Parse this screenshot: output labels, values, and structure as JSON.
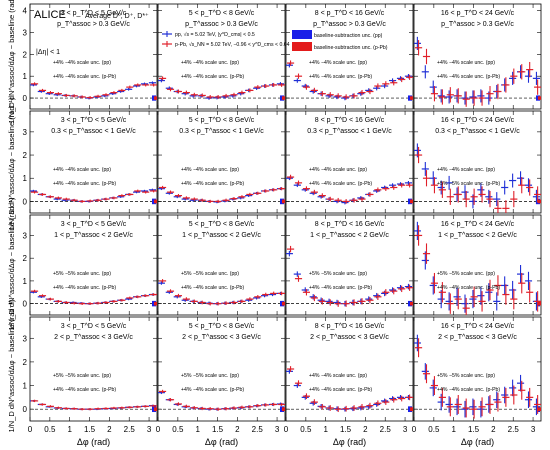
{
  "figure": {
    "experiment": "ALICE",
    "species": "Average D⁰, D⁺, D*⁺",
    "eta_cut": "|Δη| < 1",
    "ylabel": "1/N_D dN^assoc/dΔφ − baseline (rad⁻¹)",
    "xlabel": "Δφ (rad)",
    "x_ticks": [
      "0",
      "0.5",
      "1",
      "1.5",
      "2",
      "2.5",
      "3"
    ],
    "y_ticks_row1": [
      "0",
      "1",
      "2",
      "3",
      "4"
    ],
    "y_ticks": [
      "0",
      "1",
      "2",
      "3"
    ],
    "legend": {
      "pp": "pp, √s = 5.02 TeV, |y^D_cms| < 0.5",
      "ppb": "p-Pb, √s_NN = 5.02 TeV, −0.96 < y^D_cms < 0.04",
      "box_pp": "baseline-subtraction unc. (pp)",
      "box_ppb": "baseline-subtraction unc. (p-Pb)"
    },
    "colors": {
      "pp": "#1f2fd6",
      "ppb": "#e0202a",
      "box_pp": "#1a1fe8",
      "box_ppb": "#e31b1b"
    }
  },
  "panels": [
    {
      "pt_d": "3 < p_T^D < 5 GeV/c",
      "pt_assoc": "p_T^assoc > 0.3 GeV/c",
      "scale_pp": "+4% −4% scale unc. (pp)",
      "scale_ppb": "+4% −4% scale unc. (p-Pb)"
    },
    {
      "pt_d": "5 < p_T^D < 8 GeV/c",
      "pt_assoc": "p_T^assoc > 0.3 GeV/c",
      "scale_pp": "+4% −4% scale unc. (pp)",
      "scale_ppb": "+4% −4% scale unc. (p-Pb)"
    },
    {
      "pt_d": "8 < p_T^D < 16 GeV/c",
      "pt_assoc": "p_T^assoc > 0.3 GeV/c",
      "scale_pp": "+4% −4% scale unc. (pp)",
      "scale_ppb": "+4% −4% scale unc. (p-Pb)"
    },
    {
      "pt_d": "16 < p_T^D < 24 GeV/c",
      "pt_assoc": "p_T^assoc > 0.3 GeV/c",
      "scale_pp": "+4% −4% scale unc. (pp)",
      "scale_ppb": "+4% −4% scale unc. (p-Pb)"
    },
    {
      "pt_d": "3 < p_T^D < 5 GeV/c",
      "pt_assoc": "0.3 < p_T^assoc < 1 GeV/c",
      "scale_pp": "+4% −4% scale unc. (pp)",
      "scale_ppb": "+4% −4% scale unc. (p-Pb)"
    },
    {
      "pt_d": "5 < p_T^D < 8 GeV/c",
      "pt_assoc": "0.3 < p_T^assoc < 1 GeV/c",
      "scale_pp": "+4% −4% scale unc. (pp)",
      "scale_ppb": "+4% −4% scale unc. (p-Pb)"
    },
    {
      "pt_d": "8 < p_T^D < 16 GeV/c",
      "pt_assoc": "0.3 < p_T^assoc < 1 GeV/c",
      "scale_pp": "+4% −4% scale unc. (pp)",
      "scale_ppb": "+4% −4% scale unc. (p-Pb)"
    },
    {
      "pt_d": "16 < p_T^D < 24 GeV/c",
      "pt_assoc": "0.3 < p_T^assoc < 1 GeV/c",
      "scale_pp": "+4% −4% scale unc. (pp)",
      "scale_ppb": "+5% −5% scale unc. (p-Pb)"
    },
    {
      "pt_d": "3 < p_T^D < 5 GeV/c",
      "pt_assoc": "1 < p_T^assoc < 2 GeV/c",
      "scale_pp": "+5% −5% scale unc. (pp)",
      "scale_ppb": "+4% −4% scale unc. (p-Pb)"
    },
    {
      "pt_d": "5 < p_T^D < 8 GeV/c",
      "pt_assoc": "1 < p_T^assoc < 2 GeV/c",
      "scale_pp": "+5% −5% scale unc. (pp)",
      "scale_ppb": "+4% −4% scale unc. (p-Pb)"
    },
    {
      "pt_d": "8 < p_T^D < 16 GeV/c",
      "pt_assoc": "1 < p_T^assoc < 2 GeV/c",
      "scale_pp": "+5% −5% scale unc. (pp)",
      "scale_ppb": "+4% −4% scale unc. (p-Pb)"
    },
    {
      "pt_d": "16 < p_T^D < 24 GeV/c",
      "pt_assoc": "1 < p_T^assoc < 2 GeV/c",
      "scale_pp": "+5% −5% scale unc. (pp)",
      "scale_ppb": "+4% −4% scale unc. (p-Pb)"
    },
    {
      "pt_d": "3 < p_T^D < 5 GeV/c",
      "pt_assoc": "2 < p_T^assoc < 3 GeV/c",
      "scale_pp": "+5% −5% scale unc. (pp)",
      "scale_ppb": "+4% −4% scale unc. (p-Pb)"
    },
    {
      "pt_d": "5 < p_T^D < 8 GeV/c",
      "pt_assoc": "2 < p_T^assoc < 3 GeV/c",
      "scale_pp": "+5% −5% scale unc. (pp)",
      "scale_ppb": "+4% −4% scale unc. (p-Pb)"
    },
    {
      "pt_d": "8 < p_T^D < 16 GeV/c",
      "pt_assoc": "2 < p_T^assoc < 3 GeV/c",
      "scale_pp": "+4% −4% scale unc. (pp)",
      "scale_ppb": "+4% −4% scale unc. (p-Pb)"
    },
    {
      "pt_d": "16 < p_T^D < 24 GeV/c",
      "pt_assoc": "2 < p_T^assoc < 3 GeV/c",
      "scale_pp": "+5% −5% scale unc. (pp)",
      "scale_ppb": "+4% −4% scale unc. (p-Pb)"
    }
  ],
  "chart_data": {
    "type": "scatter",
    "xlim": [
      0,
      3.2
    ],
    "ylim_row1": [
      -0.5,
      4.3
    ],
    "ylim": [
      -0.5,
      3.9
    ],
    "grid": false,
    "x": [
      0.1,
      0.3,
      0.5,
      0.7,
      0.9,
      1.1,
      1.3,
      1.5,
      1.7,
      1.9,
      2.1,
      2.3,
      2.5,
      2.7,
      2.9,
      3.1
    ],
    "panels": [
      {
        "pp": [
          0.6,
          0.3,
          0.2,
          0.15,
          0.12,
          0.1,
          0.05,
          0.0,
          0.05,
          0.1,
          0.2,
          0.3,
          0.4,
          0.55,
          0.65,
          0.7
        ],
        "ppb": [
          0.65,
          0.35,
          0.25,
          0.2,
          0.12,
          0.1,
          0.05,
          0.02,
          0.08,
          0.15,
          0.25,
          0.35,
          0.5,
          0.6,
          0.6,
          0.6
        ],
        "err_pp": 0.06,
        "err_ppb": 0.07
      },
      {
        "pp": [
          0.8,
          0.45,
          0.3,
          0.2,
          0.1,
          0.1,
          0.0,
          0.02,
          0.05,
          0.1,
          0.2,
          0.35,
          0.45,
          0.55,
          0.6,
          0.65
        ],
        "ppb": [
          0.9,
          0.4,
          0.3,
          0.25,
          0.15,
          0.12,
          0.05,
          0.05,
          0.1,
          0.15,
          0.25,
          0.35,
          0.5,
          0.55,
          0.6,
          0.6
        ],
        "err_pp": 0.08,
        "err_ppb": 0.09
      },
      {
        "pp": [
          1.5,
          0.8,
          0.55,
          0.3,
          0.2,
          0.1,
          0.05,
          0.0,
          0.1,
          0.2,
          0.35,
          0.45,
          0.55,
          0.8,
          0.9,
          1.0
        ],
        "ppb": [
          1.6,
          1.0,
          0.5,
          0.35,
          0.2,
          0.15,
          0.1,
          0.05,
          0.1,
          0.25,
          0.3,
          0.55,
          0.65,
          0.7,
          0.85,
          0.95
        ],
        "err_pp": 0.1,
        "err_ppb": 0.12
      },
      {
        "pp": [
          2.5,
          1.2,
          0.5,
          0.1,
          0.05,
          0.1,
          0.0,
          0.05,
          0.1,
          0.0,
          0.3,
          0.6,
          0.9,
          1.2,
          1.0,
          0.9
        ],
        "ppb": [
          2.3,
          1.9,
          0.2,
          0.05,
          0.15,
          0.1,
          -0.05,
          0.0,
          0.0,
          0.2,
          0.3,
          0.6,
          1.0,
          1.2,
          1.3,
          0.5
        ],
        "err_pp": 0.3,
        "err_ppb": 0.35
      },
      {
        "pp": [
          0.45,
          0.3,
          0.2,
          0.1,
          0.05,
          0.05,
          0.0,
          0.0,
          0.05,
          0.1,
          0.15,
          0.2,
          0.3,
          0.4,
          0.45,
          0.5
        ],
        "ppb": [
          0.4,
          0.3,
          0.2,
          0.15,
          0.1,
          0.05,
          0.0,
          0.02,
          0.05,
          0.1,
          0.15,
          0.25,
          0.3,
          0.45,
          0.4,
          0.45
        ],
        "err_pp": 0.05,
        "err_ppb": 0.06
      },
      {
        "pp": [
          0.55,
          0.35,
          0.2,
          0.1,
          0.05,
          0.05,
          0.0,
          -0.02,
          0.02,
          0.1,
          0.15,
          0.25,
          0.35,
          0.45,
          0.5,
          0.55
        ],
        "ppb": [
          0.6,
          0.4,
          0.25,
          0.15,
          0.1,
          0.05,
          0.0,
          0.0,
          0.05,
          0.12,
          0.2,
          0.3,
          0.35,
          0.45,
          0.5,
          0.55
        ],
        "err_pp": 0.06,
        "err_ppb": 0.07
      },
      {
        "pp": [
          1.0,
          0.7,
          0.5,
          0.35,
          0.2,
          0.1,
          0.0,
          -0.05,
          0.05,
          0.15,
          0.3,
          0.45,
          0.6,
          0.7,
          0.75,
          0.8
        ],
        "ppb": [
          1.05,
          0.8,
          0.55,
          0.4,
          0.25,
          0.1,
          0.05,
          0.0,
          0.05,
          0.1,
          0.3,
          0.5,
          0.55,
          0.6,
          0.7,
          0.7
        ],
        "err_pp": 0.08,
        "err_ppb": 0.1
      },
      {
        "pp": [
          2.2,
          1.4,
          1.0,
          0.6,
          0.8,
          0.3,
          0.4,
          0.0,
          0.5,
          0.2,
          0.1,
          0.6,
          0.9,
          1.0,
          0.7,
          0.2
        ],
        "ppb": [
          2.0,
          1.0,
          0.7,
          0.5,
          0.2,
          0.3,
          0.1,
          0.2,
          0.3,
          0.1,
          -0.3,
          -0.3,
          0.1,
          0.7,
          0.6,
          0.3
        ],
        "err_pp": 0.3,
        "err_ppb": 0.35
      },
      {
        "pp": [
          0.5,
          0.3,
          0.2,
          0.1,
          0.05,
          0.05,
          0.02,
          0.0,
          0.02,
          0.05,
          0.1,
          0.15,
          0.2,
          0.3,
          0.35,
          0.4
        ],
        "ppb": [
          0.55,
          0.35,
          0.2,
          0.1,
          0.05,
          0.02,
          0.0,
          0.0,
          0.02,
          0.05,
          0.1,
          0.15,
          0.25,
          0.3,
          0.35,
          0.4
        ],
        "err_pp": 0.05,
        "err_ppb": 0.06
      },
      {
        "pp": [
          0.9,
          0.5,
          0.3,
          0.15,
          0.1,
          0.05,
          0.02,
          0.0,
          0.02,
          0.05,
          0.1,
          0.15,
          0.25,
          0.35,
          0.4,
          0.45
        ],
        "ppb": [
          1.0,
          0.55,
          0.35,
          0.2,
          0.1,
          0.05,
          0.0,
          0.0,
          0.02,
          0.05,
          0.1,
          0.2,
          0.3,
          0.4,
          0.45,
          0.45
        ],
        "err_pp": 0.07,
        "err_ppb": 0.08
      },
      {
        "pp": [
          2.2,
          1.3,
          0.6,
          0.3,
          0.15,
          0.1,
          0.05,
          0.0,
          0.05,
          0.1,
          0.2,
          0.35,
          0.45,
          0.6,
          0.7,
          0.75
        ],
        "ppb": [
          2.4,
          1.1,
          0.5,
          0.25,
          0.1,
          0.05,
          0.0,
          0.0,
          0.05,
          0.1,
          0.15,
          0.3,
          0.5,
          0.55,
          0.65,
          0.7
        ],
        "err_pp": 0.12,
        "err_ppb": 0.14
      },
      {
        "pp": [
          3.2,
          1.9,
          0.8,
          0.2,
          0.1,
          0.3,
          0.0,
          0.2,
          0.35,
          0.5,
          0.1,
          0.8,
          0.6,
          1.3,
          1.0,
          0.1
        ],
        "ppb": [
          3.0,
          2.2,
          0.9,
          0.5,
          0.0,
          0.2,
          -0.2,
          0.3,
          0.1,
          0.6,
          0.8,
          0.4,
          0.2,
          0.9,
          0.5,
          0.1
        ],
        "err_pp": 0.4,
        "err_ppb": 0.45
      },
      {
        "pp": [
          0.35,
          0.2,
          0.1,
          0.05,
          0.03,
          0.02,
          0.0,
          0.0,
          0.0,
          0.02,
          0.03,
          0.05,
          0.08,
          0.1,
          0.12,
          0.15
        ],
        "ppb": [
          0.35,
          0.2,
          0.12,
          0.06,
          0.03,
          0.02,
          0.0,
          0.0,
          0.02,
          0.03,
          0.05,
          0.06,
          0.08,
          0.1,
          0.12,
          0.14
        ],
        "err_pp": 0.04,
        "err_ppb": 0.05
      },
      {
        "pp": [
          0.7,
          0.4,
          0.2,
          0.1,
          0.05,
          0.03,
          0.0,
          0.0,
          0.02,
          0.04,
          0.06,
          0.1,
          0.14,
          0.18,
          0.2,
          0.22
        ],
        "ppb": [
          0.75,
          0.4,
          0.22,
          0.12,
          0.06,
          0.03,
          0.02,
          0.0,
          0.02,
          0.05,
          0.08,
          0.1,
          0.15,
          0.18,
          0.2,
          0.2
        ],
        "err_pp": 0.06,
        "err_ppb": 0.07
      },
      {
        "pp": [
          1.6,
          1.0,
          0.5,
          0.25,
          0.12,
          0.05,
          0.02,
          0.0,
          0.02,
          0.05,
          0.1,
          0.2,
          0.35,
          0.45,
          0.5,
          0.5
        ],
        "ppb": [
          1.7,
          1.1,
          0.55,
          0.3,
          0.1,
          0.05,
          0.0,
          0.02,
          0.05,
          0.1,
          0.15,
          0.25,
          0.3,
          0.4,
          0.45,
          0.5
        ],
        "err_pp": 0.1,
        "err_ppb": 0.12
      },
      {
        "pp": [
          2.8,
          1.6,
          0.9,
          0.3,
          0.2,
          0.1,
          0.0,
          0.1,
          0.0,
          0.2,
          0.4,
          0.6,
          0.9,
          1.1,
          0.4,
          0.1
        ],
        "ppb": [
          2.6,
          1.5,
          1.0,
          0.5,
          0.1,
          0.2,
          0.05,
          0.0,
          0.1,
          0.2,
          0.3,
          0.5,
          0.6,
          0.8,
          0.5,
          0.2
        ],
        "err_pp": 0.35,
        "err_ppb": 0.4
      }
    ]
  }
}
